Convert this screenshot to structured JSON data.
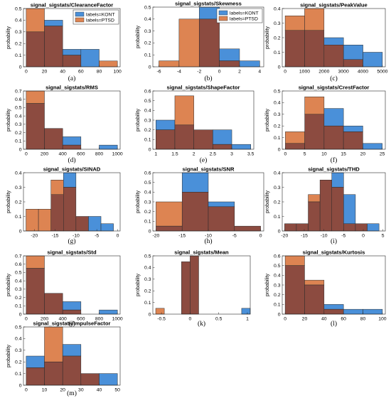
{
  "colors": {
    "kont": "#4a90d9",
    "ptsd": "#dd8452",
    "overlap": "#8c4b40"
  },
  "ylabel": "probability",
  "legend": {
    "kont": "labels=KONT",
    "ptsd": "labels=PTSD"
  },
  "chart_data": [
    {
      "type": "bar",
      "title": "signal_sigstats/ClearanceFactor",
      "caption": "(a)",
      "edges": [
        0,
        20,
        40,
        60,
        80,
        100
      ],
      "xticks": [
        0,
        20,
        40,
        60,
        80,
        100
      ],
      "xlim": [
        -3,
        103
      ],
      "ylim": [
        0,
        0.5
      ],
      "yticks": [
        0,
        0.1,
        0.2,
        0.3,
        0.4,
        0.5
      ],
      "series": [
        {
          "name": "labels=KONT",
          "values": [
            0.3,
            0.4,
            0.15,
            0.15,
            0
          ]
        },
        {
          "name": "labels=PTSD",
          "values": [
            0.5,
            0.35,
            0.1,
            0,
            0.05
          ]
        }
      ],
      "legend": "top-right"
    },
    {
      "type": "bar",
      "title": "signal_sigstats/Skewness",
      "caption": "(b)",
      "edges": [
        -6,
        -4,
        -2,
        0,
        2,
        4
      ],
      "xticks": [
        -6,
        -4,
        -2,
        0,
        2,
        4
      ],
      "xlim": [
        -6.6,
        4.4
      ],
      "ylim": [
        0,
        0.5
      ],
      "yticks": [
        0,
        0.1,
        0.2,
        0.3,
        0.4,
        0.5
      ],
      "series": [
        {
          "name": "labels=KONT",
          "values": [
            0,
            0,
            0.5,
            0.15,
            0.05
          ]
        },
        {
          "name": "labels=PTSD",
          "values": [
            0.05,
            0.4,
            0.4,
            0.05,
            0
          ]
        }
      ],
      "legend": "top-right"
    },
    {
      "type": "bar",
      "title": "signal_sigstats/PeakValue",
      "caption": "(c)",
      "edges": [
        0,
        1000,
        2000,
        3000,
        4000,
        5000
      ],
      "xticks": [
        0,
        1000,
        2000,
        3000,
        4000,
        5000
      ],
      "xlim": [
        -150,
        5150
      ],
      "ylim": [
        0,
        0.4
      ],
      "yticks": [
        0,
        0.1,
        0.2,
        0.3,
        0.4
      ],
      "series": [
        {
          "name": "labels=KONT",
          "values": [
            0.25,
            0.25,
            0.2,
            0.15,
            0.1
          ]
        },
        {
          "name": "labels=PTSD",
          "values": [
            0.35,
            0.4,
            0.15,
            0.05,
            0
          ]
        }
      ]
    },
    {
      "type": "bar",
      "title": "signal_sigstats/RMS",
      "caption": "(d)",
      "edges": [
        0,
        200,
        400,
        600,
        800,
        1000
      ],
      "xticks": [
        0,
        200,
        400,
        600,
        800,
        1000
      ],
      "xlim": [
        -30,
        1030
      ],
      "ylim": [
        0,
        0.7
      ],
      "yticks": [
        0,
        0.1,
        0.2,
        0.3,
        0.4,
        0.5,
        0.6,
        0.7
      ],
      "series": [
        {
          "name": "labels=KONT",
          "values": [
            0.55,
            0.25,
            0.15,
            0,
            0.05
          ]
        },
        {
          "name": "labels=PTSD",
          "values": [
            0.7,
            0.25,
            0.05,
            0,
            0
          ]
        }
      ]
    },
    {
      "type": "bar",
      "title": "signal_sigstats/ShapeFactor",
      "caption": "(e)",
      "edges": [
        1,
        1.5,
        2,
        2.5,
        3,
        3.5
      ],
      "xticks": [
        1,
        1.5,
        2,
        2.5,
        3,
        3.5
      ],
      "xlim": [
        0.92,
        3.58
      ],
      "ylim": [
        0,
        0.6
      ],
      "yticks": [
        0,
        0.1,
        0.2,
        0.3,
        0.4,
        0.5,
        0.6
      ],
      "series": [
        {
          "name": "labels=KONT",
          "values": [
            0.3,
            0.25,
            0.2,
            0.2,
            0.05
          ]
        },
        {
          "name": "labels=PTSD",
          "values": [
            0.2,
            0.55,
            0.2,
            0.05,
            0
          ]
        }
      ]
    },
    {
      "type": "bar",
      "title": "signal_sigstats/CrestFactor",
      "caption": "(f)",
      "edges": [
        0,
        5,
        10,
        15,
        20,
        25
      ],
      "xticks": [
        0,
        5,
        10,
        15,
        20,
        25
      ],
      "xlim": [
        -0.8,
        25.8
      ],
      "ylim": [
        0,
        0.5
      ],
      "yticks": [
        0,
        0.1,
        0.2,
        0.3,
        0.4,
        0.5
      ],
      "series": [
        {
          "name": "labels=KONT",
          "values": [
            0.05,
            0.3,
            0.35,
            0.2,
            0.05
          ]
        },
        {
          "name": "labels=PTSD",
          "values": [
            0.15,
            0.45,
            0.2,
            0.15,
            0
          ]
        }
      ]
    },
    {
      "type": "bar",
      "title": "signal_sigstats/SINAD",
      "caption": "(g)",
      "edges": [
        -22,
        -19,
        -16,
        -13,
        -10,
        -7,
        -4,
        -1
      ],
      "xticks": [
        -20,
        -15,
        -10,
        -5,
        0
      ],
      "xlim": [
        -22.6,
        0.6
      ],
      "ylim": [
        0,
        0.4
      ],
      "yticks": [
        0,
        0.1,
        0.2,
        0.3,
        0.4
      ],
      "series": [
        {
          "name": "labels=KONT",
          "values": [
            0,
            0,
            0.25,
            0.4,
            0.1,
            0.1,
            0.05
          ]
        },
        {
          "name": "labels=PTSD",
          "values": [
            0.15,
            0.15,
            0.35,
            0.3,
            0.1,
            0,
            0
          ]
        }
      ]
    },
    {
      "type": "bar",
      "title": "signal_sigstats/SNR",
      "caption": "(h)",
      "edges": [
        -20,
        -15,
        -10,
        -5,
        0
      ],
      "xticks": [
        -20,
        -15,
        -10,
        -5,
        0
      ],
      "xlim": [
        -20.6,
        0.6
      ],
      "ylim": [
        0,
        0.6
      ],
      "yticks": [
        0,
        0.1,
        0.2,
        0.3,
        0.4,
        0.5,
        0.6
      ],
      "series": [
        {
          "name": "labels=KONT",
          "values": [
            0.05,
            0.6,
            0.3,
            0.05
          ]
        },
        {
          "name": "labels=PTSD",
          "values": [
            0.3,
            0.4,
            0.25,
            0.05
          ]
        }
      ]
    },
    {
      "type": "bar",
      "title": "signal_sigstats/THD",
      "caption": "(i)",
      "edges": [
        -20,
        -17,
        -14,
        -11,
        -8,
        -5,
        -2,
        1,
        4
      ],
      "xticks": [
        -20,
        -15,
        -10,
        -5,
        0,
        5
      ],
      "xlim": [
        -20.6,
        5.6
      ],
      "ylim": [
        0,
        0.4
      ],
      "yticks": [
        0,
        0.1,
        0.2,
        0.3,
        0.4
      ],
      "series": [
        {
          "name": "labels=KONT",
          "values": [
            0.05,
            0.05,
            0.2,
            0.35,
            0.4,
            0.25,
            0.05,
            0.05
          ]
        },
        {
          "name": "labels=PTSD",
          "values": [
            0.05,
            0.05,
            0.25,
            0.35,
            0.3,
            0.05,
            0.05,
            0
          ]
        }
      ]
    },
    {
      "type": "bar",
      "title": "signal_sigstats/Std",
      "caption": "(j)",
      "edges": [
        0,
        200,
        400,
        600,
        800,
        1000
      ],
      "xticks": [
        0,
        200,
        400,
        600,
        800,
        1000
      ],
      "xlim": [
        -30,
        1030
      ],
      "ylim": [
        0,
        0.7
      ],
      "yticks": [
        0,
        0.1,
        0.2,
        0.3,
        0.4,
        0.5,
        0.6,
        0.7
      ],
      "series": [
        {
          "name": "labels=KONT",
          "values": [
            0.55,
            0.25,
            0.15,
            0,
            0.05
          ]
        },
        {
          "name": "labels=PTSD",
          "values": [
            0.7,
            0.25,
            0.05,
            0,
            0
          ]
        }
      ]
    },
    {
      "type": "bar",
      "title": "signal_sigstats/Mean",
      "caption": "(k)",
      "edges": [
        -0.6,
        -0.45,
        -0.3,
        -0.15,
        0,
        0.15,
        0.3,
        0.45,
        0.6,
        0.75,
        0.9,
        1.05
      ],
      "xticks": [
        -0.5,
        0,
        0.5,
        1
      ],
      "xlim": [
        -0.65,
        1.05
      ],
      "ylim": [
        0,
        0.5
      ],
      "yticks": [
        0,
        0.1,
        0.2,
        0.3,
        0.4,
        0.5
      ],
      "series": [
        {
          "name": "labels=KONT",
          "values": [
            0,
            0,
            0,
            0.45,
            0.5,
            0,
            0,
            0,
            0,
            0,
            0.05
          ]
        },
        {
          "name": "labels=PTSD",
          "values": [
            0.05,
            0,
            0,
            0.45,
            0.5,
            0,
            0,
            0,
            0,
            0,
            0
          ]
        }
      ]
    },
    {
      "type": "bar",
      "title": "signal_sigstats/Kurtosis",
      "caption": "(l)",
      "edges": [
        0,
        20,
        40,
        60,
        80,
        100
      ],
      "xticks": [
        0,
        20,
        40,
        60,
        80,
        100
      ],
      "xlim": [
        -3,
        103
      ],
      "ylim": [
        0,
        0.6
      ],
      "yticks": [
        0,
        0.1,
        0.2,
        0.3,
        0.4,
        0.5,
        0.6
      ],
      "series": [
        {
          "name": "labels=KONT",
          "values": [
            0.5,
            0.3,
            0.1,
            0.05,
            0.05
          ]
        },
        {
          "name": "labels=PTSD",
          "values": [
            0.6,
            0.35,
            0.05,
            0,
            0
          ]
        }
      ]
    },
    {
      "type": "bar",
      "title": "signal_sigstats/ImpulseFactor",
      "caption": "(m)",
      "edges": [
        0,
        10,
        20,
        30,
        40,
        50
      ],
      "xticks": [
        0,
        10,
        20,
        30,
        40,
        50
      ],
      "xlim": [
        -1.5,
        51.5
      ],
      "ylim": [
        0,
        0.5
      ],
      "yticks": [
        0,
        0.1,
        0.2,
        0.3,
        0.4,
        0.5
      ],
      "series": [
        {
          "name": "labels=KONT",
          "values": [
            0.25,
            0.2,
            0.35,
            0.1,
            0.1
          ]
        },
        {
          "name": "labels=PTSD",
          "values": [
            0.15,
            0.5,
            0.25,
            0.1,
            0
          ]
        }
      ]
    }
  ]
}
